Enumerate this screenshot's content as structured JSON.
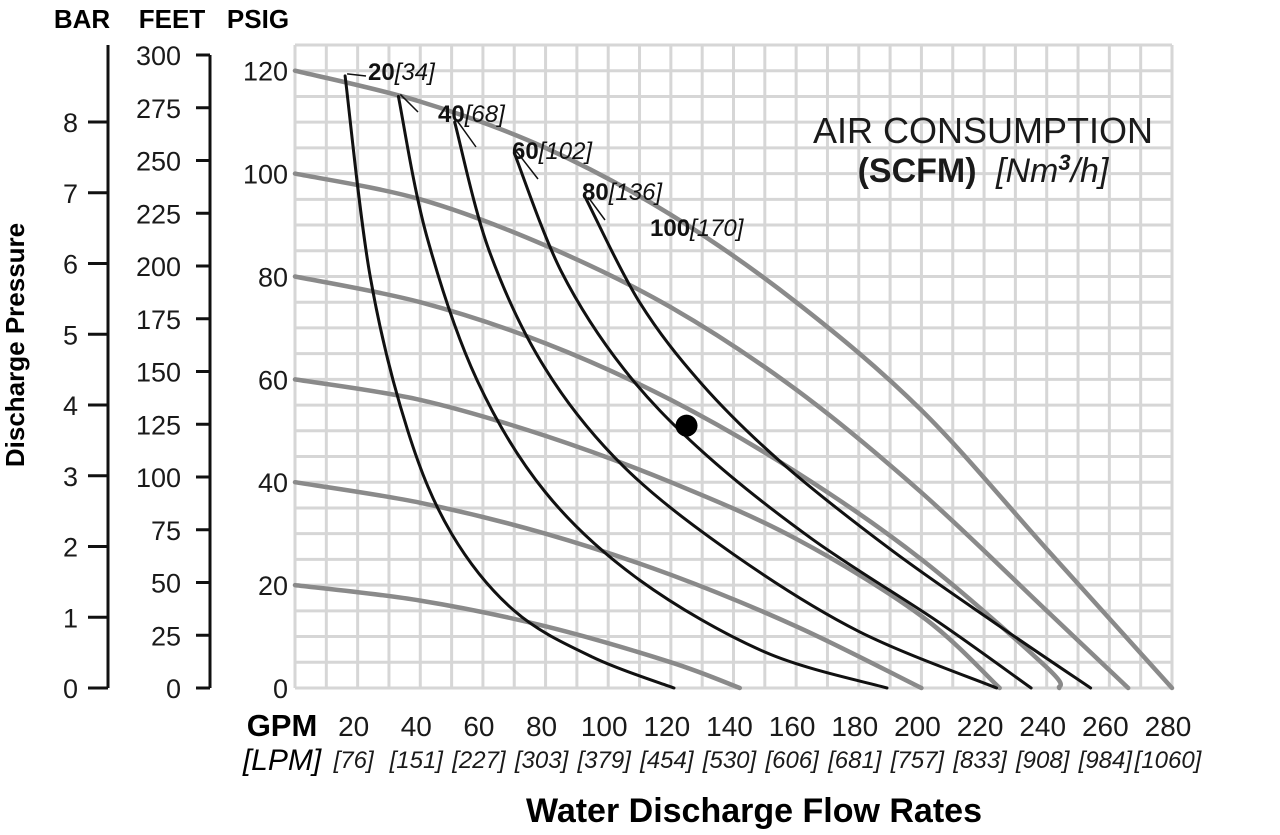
{
  "chart_data": {
    "type": "line",
    "axis_headers": {
      "bar": "BAR",
      "feet": "FEET",
      "psig": "PSIG"
    },
    "ylabel": "Discharge Pressure",
    "xlabel": "Water Discharge Flow Rates",
    "x_unit": "GPM",
    "x_unit_alt": "[LPM]",
    "xlim": [
      0,
      280
    ],
    "ylim": [
      0,
      125
    ],
    "x_ticks": [
      {
        "gpm": 20,
        "lpm": "[76]"
      },
      {
        "gpm": 40,
        "lpm": "[151]"
      },
      {
        "gpm": 60,
        "lpm": "[227]"
      },
      {
        "gpm": 80,
        "lpm": "[303]"
      },
      {
        "gpm": 100,
        "lpm": "[379]"
      },
      {
        "gpm": 120,
        "lpm": "[454]"
      },
      {
        "gpm": 140,
        "lpm": "[530]"
      },
      {
        "gpm": 160,
        "lpm": "[606]"
      },
      {
        "gpm": 180,
        "lpm": "[681]"
      },
      {
        "gpm": 200,
        "lpm": "[757]"
      },
      {
        "gpm": 220,
        "lpm": "[833]"
      },
      {
        "gpm": 240,
        "lpm": "[908]"
      },
      {
        "gpm": 260,
        "lpm": "[984]"
      },
      {
        "gpm": 280,
        "lpm": "[1060]"
      }
    ],
    "psig_ticks": [
      0,
      20,
      40,
      60,
      80,
      100,
      120
    ],
    "feet_ticks": [
      0,
      25,
      50,
      75,
      100,
      125,
      150,
      175,
      200,
      225,
      250,
      275,
      300
    ],
    "bar_ticks": [
      0,
      1,
      2,
      3,
      4,
      5,
      6,
      7,
      8
    ],
    "grid": true,
    "annotation_title": "AIR CONSUMPTION",
    "annotation_units_bold": "(SCFM)",
    "annotation_units_alt_prefix": "[Nm",
    "annotation_units_alt_sup": "3",
    "annotation_units_alt_suffix": "/h]",
    "pressure_curves_color": "#8a8a8a",
    "air_curves_color": "#111111",
    "pressure_curves": [
      {
        "points": [
          [
            0,
            120
          ],
          [
            40,
            114
          ],
          [
            80,
            105
          ],
          [
            120,
            92
          ],
          [
            160,
            75
          ],
          [
            200,
            54
          ],
          [
            240,
            27
          ],
          [
            280,
            0
          ]
        ]
      },
      {
        "points": [
          [
            0,
            100
          ],
          [
            40,
            95
          ],
          [
            80,
            86
          ],
          [
            120,
            74
          ],
          [
            160,
            58
          ],
          [
            200,
            38
          ],
          [
            240,
            15
          ],
          [
            266,
            0
          ]
        ]
      },
      {
        "points": [
          [
            0,
            80
          ],
          [
            40,
            75
          ],
          [
            80,
            67
          ],
          [
            120,
            56
          ],
          [
            160,
            42
          ],
          [
            200,
            25
          ],
          [
            240,
            4
          ],
          [
            244,
            0
          ]
        ]
      },
      {
        "points": [
          [
            0,
            60
          ],
          [
            40,
            56
          ],
          [
            80,
            49
          ],
          [
            120,
            40
          ],
          [
            160,
            29
          ],
          [
            200,
            14
          ],
          [
            225,
            0
          ]
        ]
      },
      {
        "points": [
          [
            0,
            40
          ],
          [
            40,
            36
          ],
          [
            80,
            30
          ],
          [
            120,
            22
          ],
          [
            160,
            12
          ],
          [
            200,
            0
          ]
        ]
      },
      {
        "points": [
          [
            0,
            20
          ],
          [
            40,
            17
          ],
          [
            80,
            12
          ],
          [
            120,
            5
          ],
          [
            142,
            0
          ]
        ]
      }
    ],
    "air_curves": [
      {
        "scfm": "20",
        "nm3h": "[34]",
        "points": [
          [
            16,
            119
          ],
          [
            24,
            80
          ],
          [
            36,
            50
          ],
          [
            50,
            30
          ],
          [
            70,
            15
          ],
          [
            95,
            6
          ],
          [
            121,
            0
          ]
        ]
      },
      {
        "scfm": "40",
        "nm3h": "[68]",
        "points": [
          [
            33,
            115
          ],
          [
            42,
            88
          ],
          [
            58,
            60
          ],
          [
            80,
            38
          ],
          [
            110,
            21
          ],
          [
            150,
            7
          ],
          [
            189,
            0
          ]
        ]
      },
      {
        "scfm": "60",
        "nm3h": "[102]",
        "points": [
          [
            51,
            110
          ],
          [
            62,
            85
          ],
          [
            80,
            62
          ],
          [
            105,
            43
          ],
          [
            140,
            26
          ],
          [
            180,
            11
          ],
          [
            224,
            0
          ]
        ]
      },
      {
        "scfm": "80",
        "nm3h": "[136]",
        "points": [
          [
            70,
            104
          ],
          [
            85,
            81
          ],
          [
            105,
            62
          ],
          [
            130,
            46
          ],
          [
            165,
            29
          ],
          [
            205,
            13
          ],
          [
            235,
            0
          ]
        ]
      },
      {
        "scfm": "100",
        "nm3h": "[170]",
        "points": [
          [
            93,
            95
          ],
          [
            110,
            75
          ],
          [
            130,
            59
          ],
          [
            155,
            44
          ],
          [
            190,
            27
          ],
          [
            225,
            12
          ],
          [
            254,
            0
          ]
        ]
      }
    ],
    "operating_point": {
      "gpm": 125,
      "psig": 51
    }
  }
}
